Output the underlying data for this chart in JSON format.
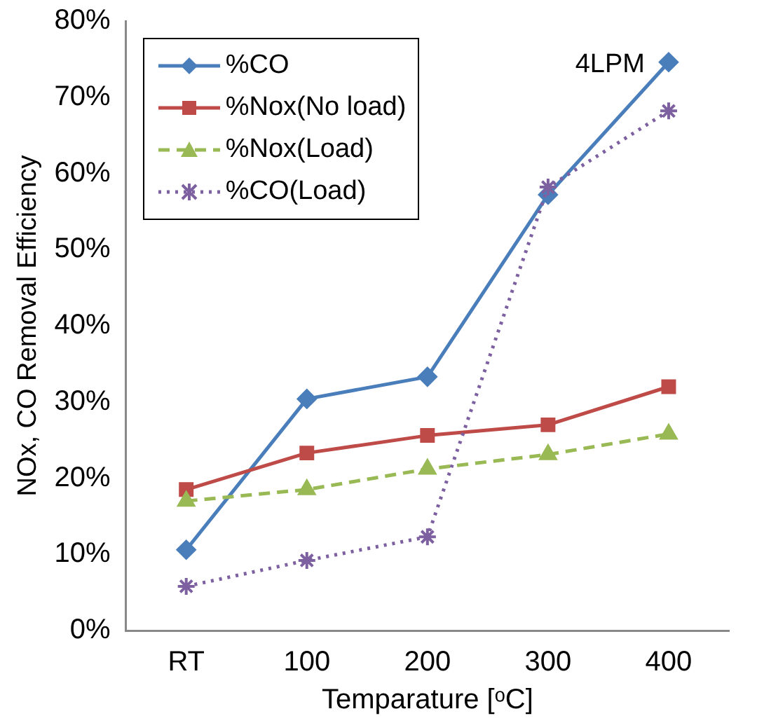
{
  "chart_data": {
    "type": "line",
    "xlabel": "Temparature [ᵒC]",
    "ylabel": "NOx, CO Removal Efficiency",
    "categories": [
      "RT",
      "100",
      "200",
      "300",
      "400"
    ],
    "series": [
      {
        "name": "%CO",
        "color": "#4a7ebb",
        "marker": "diamond",
        "line_style": "solid",
        "values": [
          10.6,
          30.4,
          33.3,
          57.2,
          74.6
        ]
      },
      {
        "name": "%Nox(No load)",
        "color": "#be4b48",
        "marker": "square",
        "line_style": "solid",
        "values": [
          18.5,
          23.3,
          25.6,
          27.0,
          32.0
        ]
      },
      {
        "name": "%Nox(Load)",
        "color": "#98b954",
        "marker": "triangle",
        "line_style": "dashed",
        "values": [
          17.0,
          18.5,
          21.2,
          23.1,
          25.8
        ]
      },
      {
        "name": "%CO(Load)",
        "color": "#7d60a0",
        "marker": "cross",
        "line_style": "dotted",
        "values": [
          5.8,
          9.2,
          12.3,
          58.2,
          68.2
        ]
      }
    ],
    "ylim": [
      0,
      80
    ],
    "yticks": [
      {
        "value": 0,
        "label": "0%"
      },
      {
        "value": 10,
        "label": "10%"
      },
      {
        "value": 20,
        "label": "20%"
      },
      {
        "value": 30,
        "label": "30%"
      },
      {
        "value": 40,
        "label": "40%"
      },
      {
        "value": 50,
        "label": "50%"
      },
      {
        "value": 60,
        "label": "60%"
      },
      {
        "value": 70,
        "label": "70%"
      },
      {
        "value": 80,
        "label": "80%"
      }
    ],
    "grid": false,
    "legend": "top left",
    "annotations": [
      "4LPM"
    ]
  }
}
